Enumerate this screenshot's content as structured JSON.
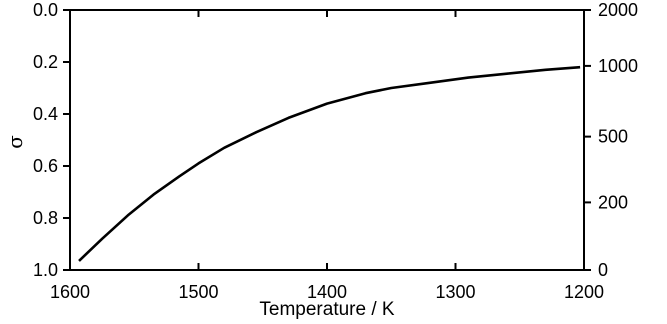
{
  "chart_data": {
    "type": "line",
    "title": "",
    "xlabel": "Temperature / K",
    "ylabel": "σ",
    "x_reversed": true,
    "xlim": [
      1600,
      1200
    ],
    "ylim": [
      0.0,
      1.0
    ],
    "y_reversed": true,
    "x_ticks": [
      1600,
      1500,
      1400,
      1300,
      1200
    ],
    "x_tick_labels": [
      "1600",
      "1500",
      "1400",
      "1300",
      "1200"
    ],
    "y_ticks": [
      0.0,
      0.2,
      0.4,
      0.6,
      0.8,
      1.0
    ],
    "y_tick_labels": [
      "0.0",
      "0.2",
      "0.4",
      "0.6",
      "0.8",
      "1.0"
    ],
    "right_axis": {
      "ticks_sigma": [
        0.0,
        0.215,
        0.487,
        0.74,
        1.0
      ],
      "tick_labels": [
        "2000",
        "1000",
        "500",
        "200",
        "0"
      ]
    },
    "grid": false,
    "series": [
      {
        "x": [
          1593,
          1575,
          1555,
          1535,
          1515,
          1500,
          1480,
          1455,
          1430,
          1400,
          1370,
          1350,
          1320,
          1290,
          1260,
          1230,
          1203
        ],
        "y": [
          0.965,
          0.88,
          0.79,
          0.71,
          0.64,
          0.59,
          0.53,
          0.47,
          0.415,
          0.36,
          0.32,
          0.3,
          0.28,
          0.26,
          0.245,
          0.23,
          0.22
        ]
      }
    ]
  }
}
